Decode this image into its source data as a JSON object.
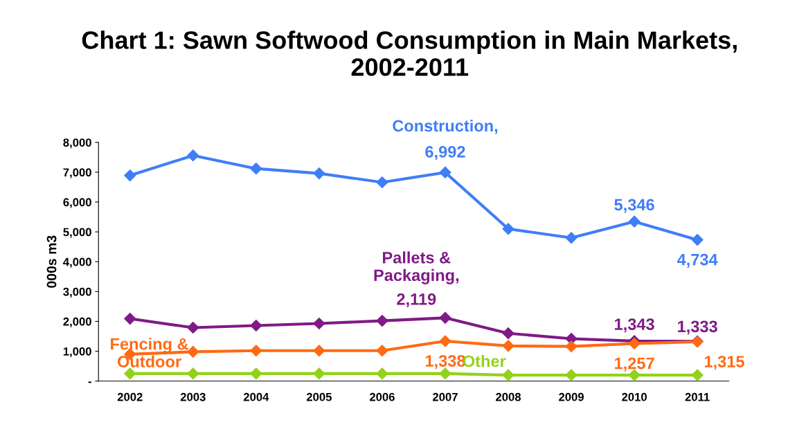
{
  "chart_data": {
    "type": "line",
    "title": "Chart 1: Sawn Softwood Consumption in Main Markets, 2002-2011",
    "ylabel": "000s m3",
    "categories": [
      "2002",
      "2003",
      "2004",
      "2005",
      "2006",
      "2007",
      "2008",
      "2009",
      "2010",
      "2011"
    ],
    "series": [
      {
        "color": "#3f7ef7",
        "values": [
          6890,
          7560,
          7120,
          6960,
          6660,
          6992,
          5100,
          4800,
          5346,
          4734
        ],
        "value_labels": [
          null,
          null,
          null,
          null,
          null,
          "6,992",
          null,
          null,
          "5,346",
          "4,734"
        ]
      },
      {
        "color": "#7f1a86",
        "values": [
          2090,
          1790,
          1860,
          1930,
          2020,
          2119,
          1600,
          1420,
          1343,
          1333
        ],
        "value_labels": [
          null,
          null,
          null,
          null,
          null,
          "2,119",
          null,
          null,
          "1,343",
          "1,333"
        ]
      },
      {
        "color": "#ff6a13",
        "values": [
          900,
          980,
          1020,
          1020,
          1020,
          1338,
          1180,
          1160,
          1257,
          1315
        ],
        "value_labels": [
          null,
          null,
          null,
          null,
          null,
          "1,338",
          null,
          null,
          "1,257",
          "1,315"
        ]
      },
      {
        "color": "#92d21a",
        "values": [
          250,
          250,
          250,
          250,
          250,
          250,
          200,
          200,
          200,
          200
        ]
      }
    ],
    "annotations": [
      {
        "text": "Construction,",
        "x": "2007",
        "y": 6992
      },
      {
        "text": "Pallets &\nPackaging,",
        "x": "2007",
        "y": 2119
      },
      {
        "text": "Fencing &\nOutdoor",
        "x": "2002",
        "y": 900
      },
      {
        "text": "Other",
        "x": "2008",
        "y": 200
      }
    ],
    "ylim": [
      0,
      8000
    ],
    "yticks": [
      {
        "value": 0,
        "label": "-"
      },
      {
        "value": 1000,
        "label": "1,000"
      },
      {
        "value": 2000,
        "label": "2,000"
      },
      {
        "value": 3000,
        "label": "3,000"
      },
      {
        "value": 4000,
        "label": "4,000"
      },
      {
        "value": 5000,
        "label": "5,000"
      },
      {
        "value": 6000,
        "label": "6,000"
      },
      {
        "value": 7000,
        "label": "7,000"
      },
      {
        "value": 8000,
        "label": "8,000"
      }
    ],
    "marker": "diamond",
    "line_style": "solid",
    "grid": false,
    "legend": false
  }
}
